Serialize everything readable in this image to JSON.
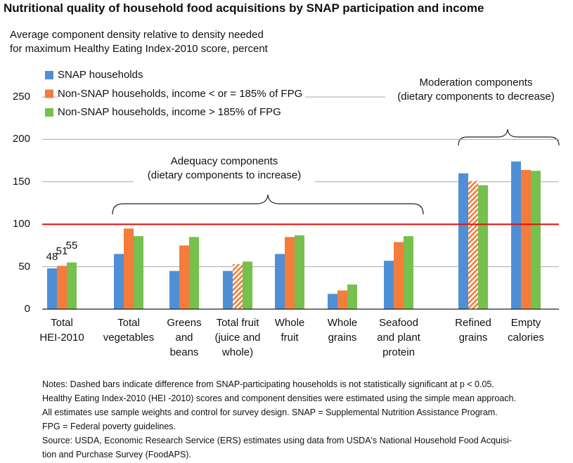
{
  "chart_data": {
    "type": "bar",
    "title": "Nutritional quality of household food acquisitions by SNAP participation and income",
    "subtitle": "Average component density relative to density needed\nfor maximum Healthy Eating Index-2010 score, percent",
    "categories": [
      "Total\nHEI-2010",
      "Total\nvegetables",
      "Greens\nand\nbeans",
      "Total fruit\n(juice and\nwhole)",
      "Whole\nfruit",
      "Whole\ngrains",
      "Seafood\nand plant\nprotein",
      "Refined\ngrains",
      "Empty\ncalories"
    ],
    "series": [
      {
        "name": "SNAP households",
        "color": "#4f8fd6",
        "values": [
          48,
          65,
          45,
          45,
          65,
          18,
          57,
          160,
          174
        ],
        "hatched": [
          false,
          false,
          false,
          false,
          false,
          false,
          false,
          false,
          false
        ]
      },
      {
        "name": "Non-SNAP households, income < or = 185% of FPG",
        "color": "#f47c3c",
        "values": [
          51,
          95,
          75,
          53,
          85,
          22,
          79,
          151,
          164
        ],
        "hatched": [
          false,
          false,
          false,
          true,
          false,
          false,
          false,
          true,
          false
        ]
      },
      {
        "name": "Non-SNAP households, income > 185% of FPG",
        "color": "#76c04e",
        "values": [
          55,
          86,
          85,
          56,
          87,
          29,
          86,
          146,
          163
        ],
        "hatched": [
          false,
          false,
          false,
          false,
          false,
          false,
          false,
          false,
          false
        ]
      }
    ],
    "value_label_categories": [
      0
    ],
    "ylim": [
      0,
      250
    ],
    "yticks": [
      0,
      50,
      100,
      150,
      200,
      250
    ],
    "grid": true,
    "reference_line": {
      "value": 100,
      "color": "#e01010"
    },
    "annotations": [
      "Adequacy components\n(dietary components to increase)",
      "Moderation components\n(dietary components to decrease)"
    ],
    "notes": [
      "Notes: Dashed bars indicate difference from SNAP-participating households is not statistically significant at p < 0.05.",
      "Healthy Eating Index-2010 (HEI -2010) scores and component densities were estimated using the simple mean approach.",
      "All estimates use sample weights and control for survey design. SNAP = Supplemental Nutrition Assistance Program.",
      "FPG = Federal poverty guidelines.",
      "Source: USDA, Economic Research Service (ERS) estimates using data from USDA's National Household Food Acquisi-",
      "tion and Purchase Survey (FoodAPS)."
    ]
  }
}
